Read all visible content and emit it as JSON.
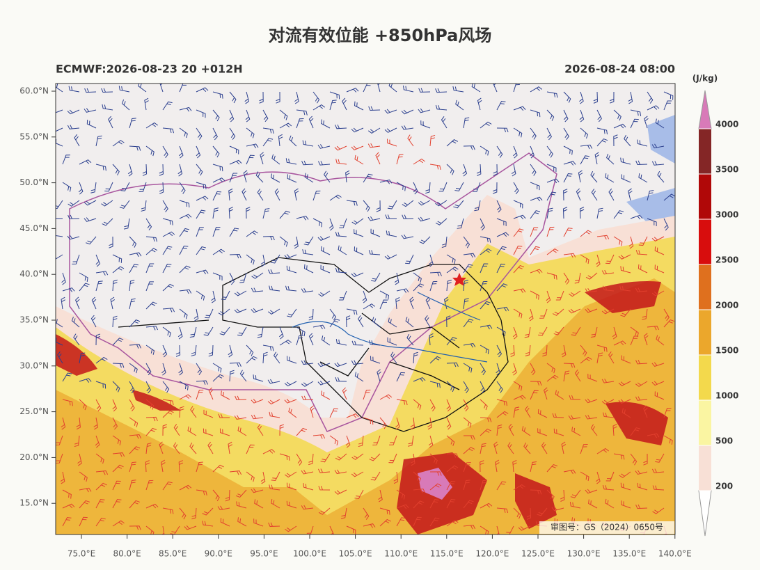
{
  "header": {
    "title": "对流有效位能 +850hPa风场",
    "left_subtitle": "ECMWF:2026-08-23 20 +012H",
    "right_subtitle": "2026-08-24 08:00"
  },
  "map": {
    "lat_labels": [
      "60.0°N",
      "55.0°N",
      "50.0°N",
      "45.0°N",
      "40.0°N",
      "35.0°N",
      "30.0°N",
      "25.0°N",
      "20.0°N",
      "15.0°N"
    ],
    "lon_labels": [
      "75.0°E",
      "80.0°E",
      "85.0°E",
      "90.0°E",
      "95.0°E",
      "100.0°E",
      "105.0°E",
      "110.0°E",
      "115.0°E",
      "120.0°E",
      "125.0°E",
      "130.0°E",
      "135.0°E",
      "140.0°E"
    ],
    "approval": "审图号：GS（2024）0650号"
  },
  "colorbar": {
    "unit": "(J/kg)",
    "levels": [
      200,
      500,
      1000,
      1500,
      2000,
      2500,
      3000,
      3500,
      4000
    ],
    "colors": [
      "#f8e0d6",
      "#faf5a2",
      "#f3d94c",
      "#eba72c",
      "#df701e",
      "#d80d0d",
      "#b00808",
      "#842626"
    ],
    "under_color": "#ffffff",
    "over_color": "#d87ab8"
  }
}
